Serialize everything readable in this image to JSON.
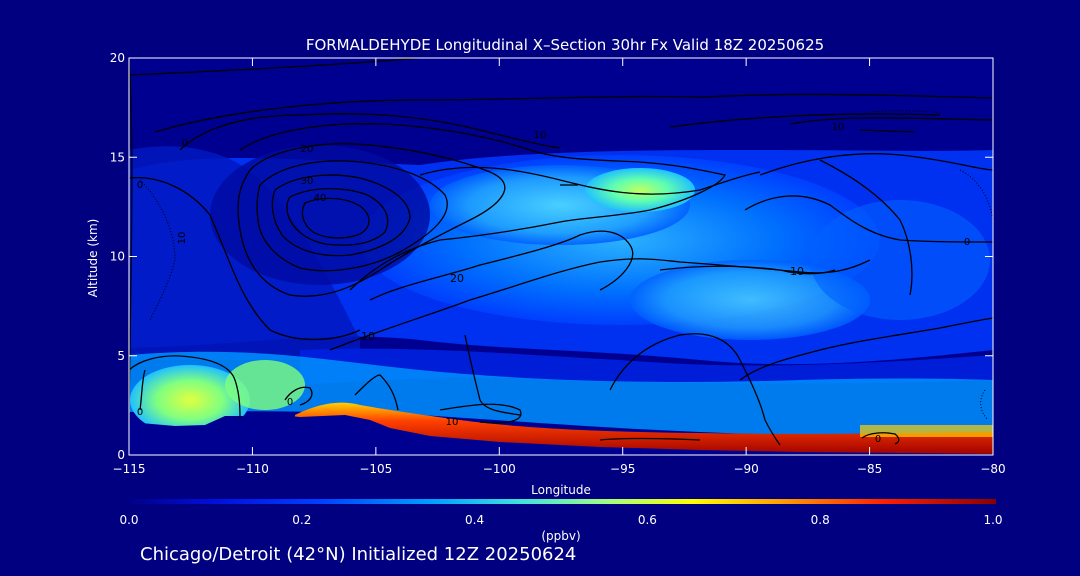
{
  "chart_data": {
    "type": "heatmap",
    "title": "FORMALDEHYDE Longitudinal X–Section 30hr  Fx Valid 18Z 20250625",
    "xlabel": "Longitude",
    "ylabel": "Altitude (km)",
    "xlim": [
      -115,
      -80
    ],
    "ylim": [
      0,
      20
    ],
    "x_ticks": [
      -115,
      -110,
      -105,
      -100,
      -95,
      -90,
      -85,
      -80
    ],
    "x_tick_labels": [
      "−115",
      "−110",
      "−105",
      "−100",
      "−95",
      "−90",
      "−85",
      "−80"
    ],
    "y_ticks": [
      0,
      5,
      10,
      15,
      20
    ],
    "y_tick_labels": [
      "0",
      "5",
      "10",
      "15",
      "20"
    ],
    "colorbar": {
      "min": 0.0,
      "max": 1.0,
      "ticks": [
        0.0,
        0.2,
        0.4,
        0.6,
        0.8,
        1.0
      ],
      "tick_labels": [
        "0.0",
        "0.2",
        "0.4",
        "0.6",
        "0.8",
        "1.0"
      ],
      "units": "(ppbv)"
    },
    "contour_labels": [
      "0",
      "10",
      "20",
      "30",
      "40",
      "0",
      "10",
      "20",
      "10",
      "0",
      "10",
      "0",
      "10",
      "0",
      "0",
      "10"
    ],
    "grid": false,
    "legend": "colorbar-bottom"
  },
  "subtitle": "Chicago/Detroit (42°N) Initialized 12Z 20250624",
  "colors": {
    "background": "#000080",
    "low": "#0000cc",
    "high": "#cc0000"
  }
}
